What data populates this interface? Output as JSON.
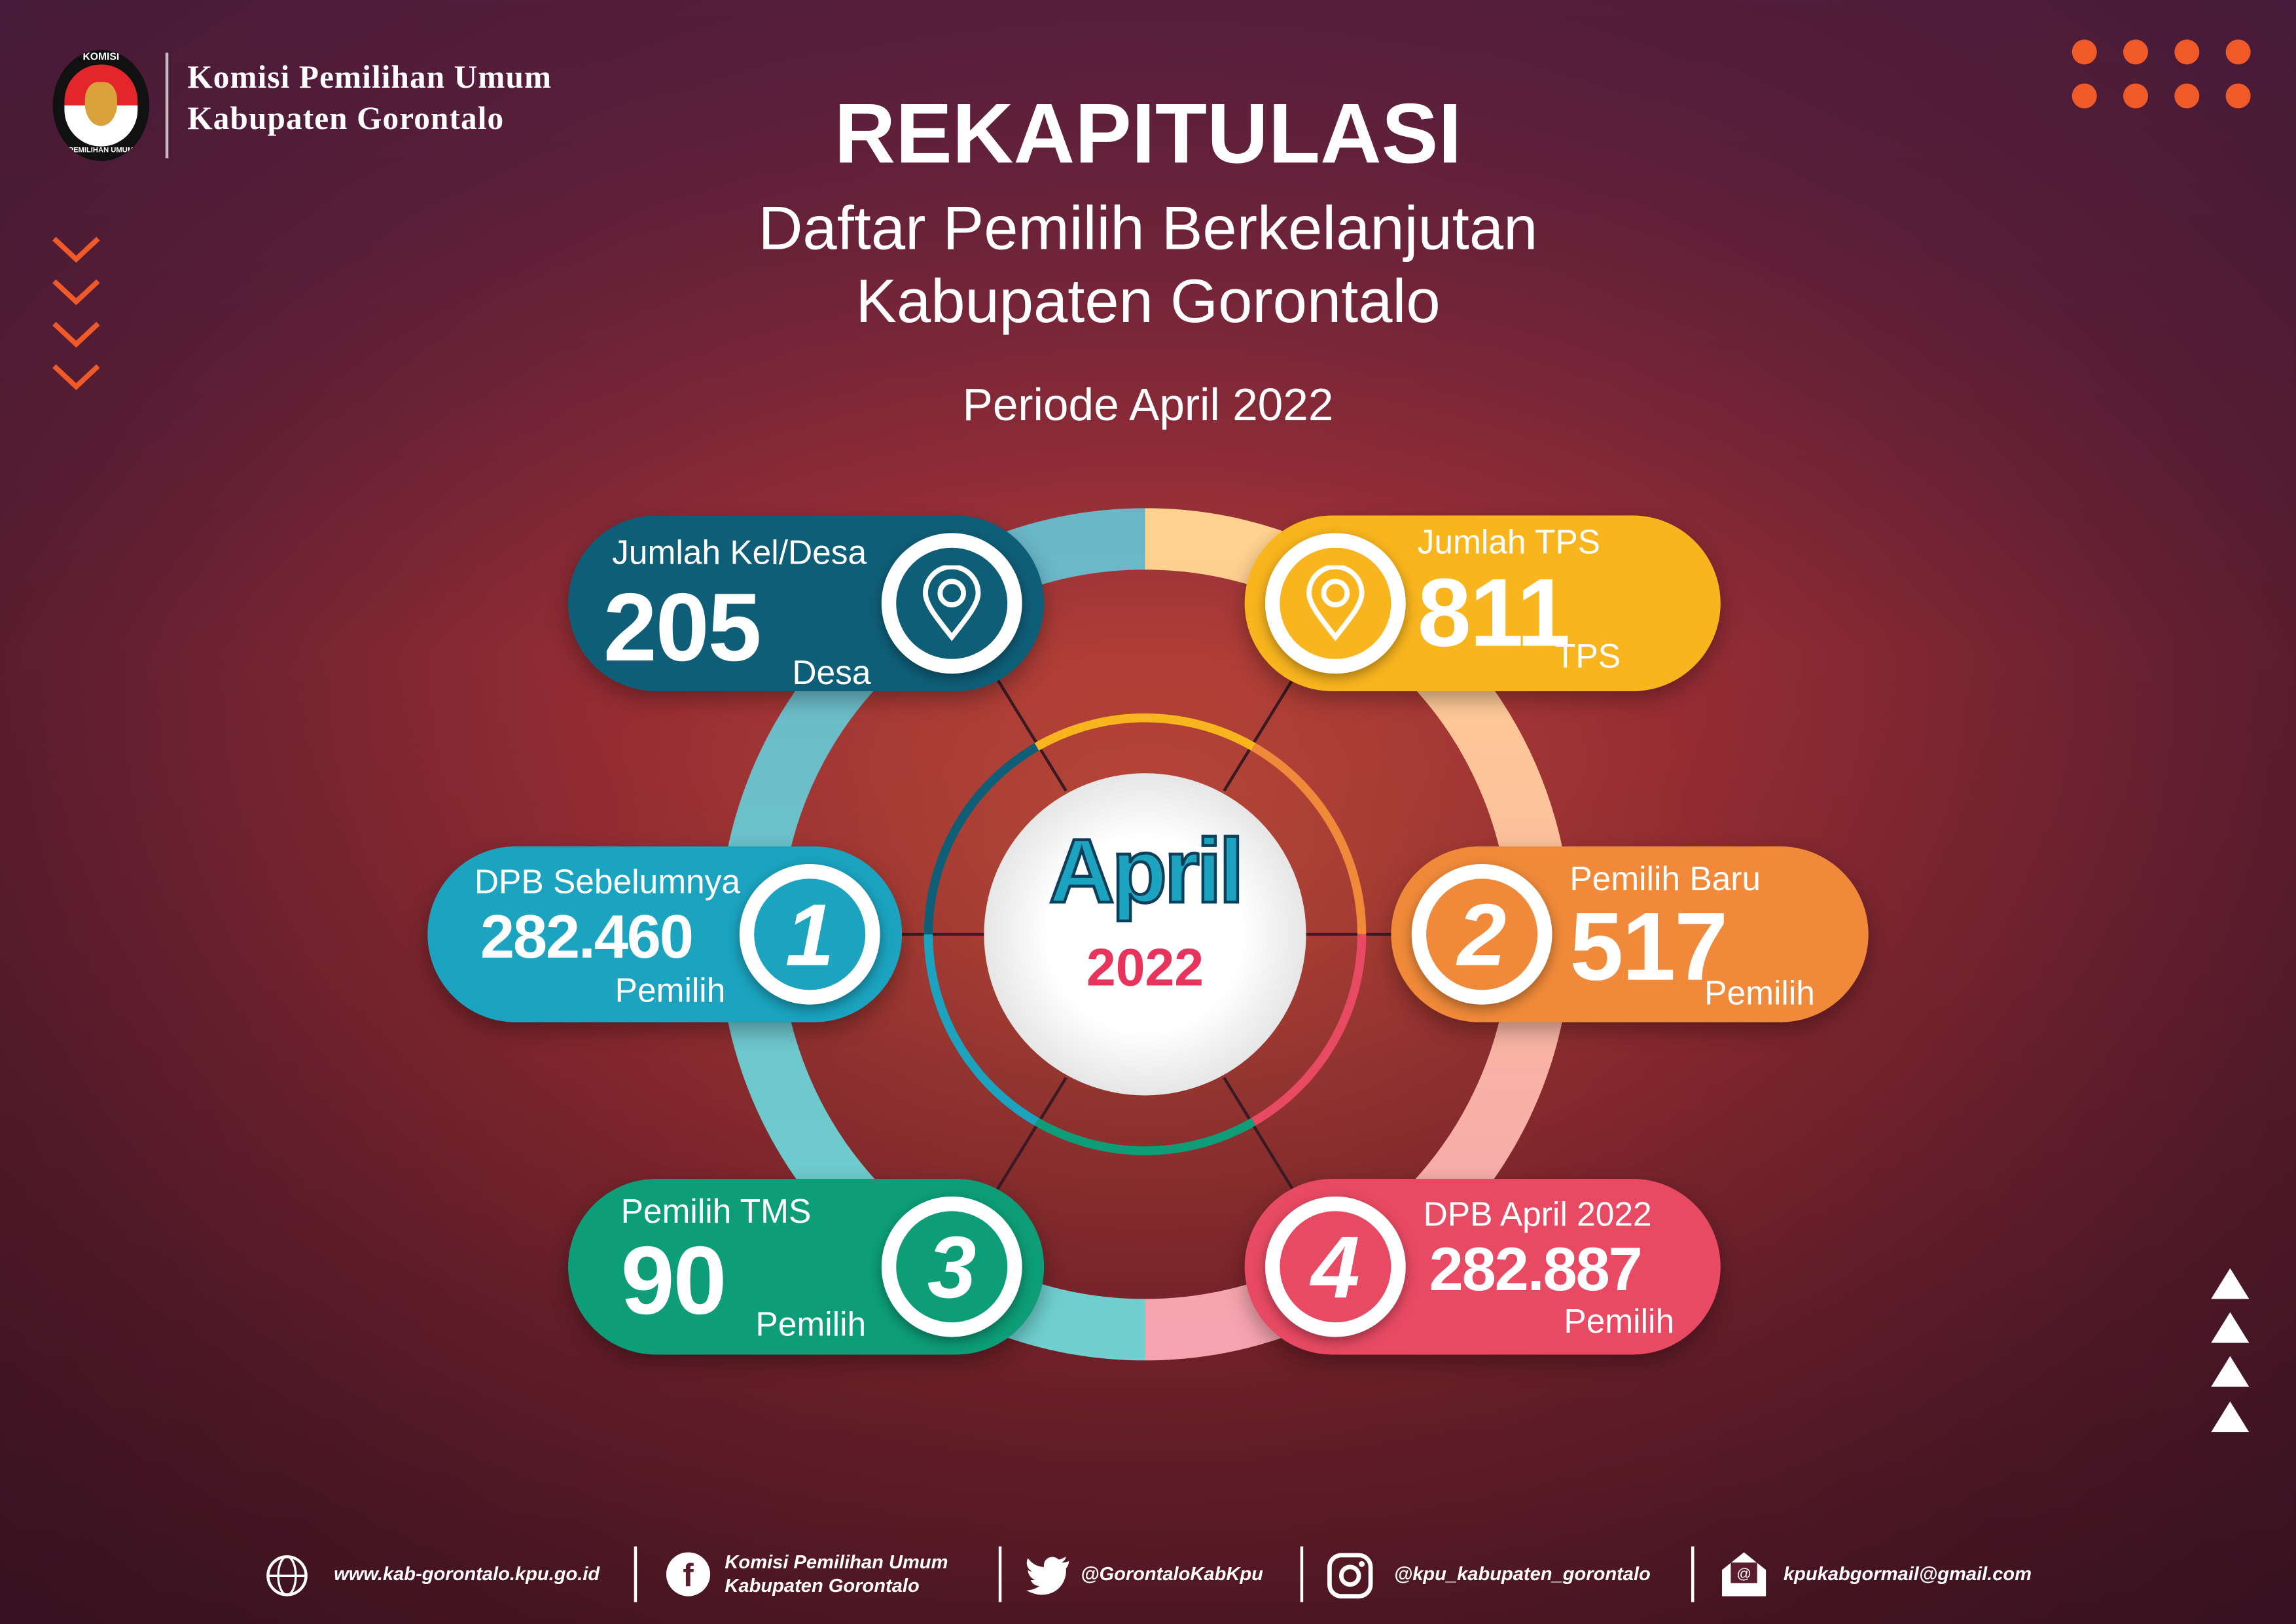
{
  "header": {
    "logo_text_top": "KOMISI",
    "logo_text_bottom": "PEMILIHAN UMUM",
    "org_line1": "Komisi Pemilihan Umum",
    "org_line2": "Kabupaten Gorontalo"
  },
  "title": "REKAPITULASI",
  "subtitle_line1": "Daftar Pemilih Berkelanjutan",
  "subtitle_line2": "Kabupaten Gorontalo",
  "period": "Periode April 2022",
  "center": {
    "month": "April",
    "year": "2022"
  },
  "colors": {
    "accent": "#f05a28",
    "desa": "#0f5e78",
    "tps": "#f9b51e",
    "dpb_prev": "#1ba3bf",
    "baru": "#f08a3a",
    "tms": "#0d9d78",
    "dpb_april": "#e84a63"
  },
  "stats": {
    "desa": {
      "label": "Jumlah Kel/Desa",
      "value": "205",
      "unit": "Desa",
      "icon": "map-pin-icon"
    },
    "tps": {
      "label": "Jumlah TPS",
      "value": "811",
      "unit": "TPS",
      "icon": "map-pin-icon"
    },
    "dpb_prev": {
      "label": "DPB Sebelumnya",
      "value": "282.460",
      "unit": "Pemilih",
      "step": "1"
    },
    "baru": {
      "label": "Pemilih Baru",
      "value": "517",
      "unit": "Pemilih",
      "step": "2"
    },
    "tms": {
      "label": "Pemilih TMS",
      "value": "90",
      "unit": "Pemilih",
      "step": "3"
    },
    "dpb_april": {
      "label": "DPB April 2022",
      "value": "282.887",
      "unit": "Pemilih",
      "step": "4"
    }
  },
  "footer": {
    "website": "www.kab-gorontalo.kpu.go.id",
    "facebook_line1": "Komisi Pemilihan Umum",
    "facebook_line2": "Kabupaten Gorontalo",
    "twitter": "@GorontaloKabKpu",
    "instagram": "@kpu_kabupaten_gorontalo",
    "email": "kpukabgormail@gmail.com"
  }
}
